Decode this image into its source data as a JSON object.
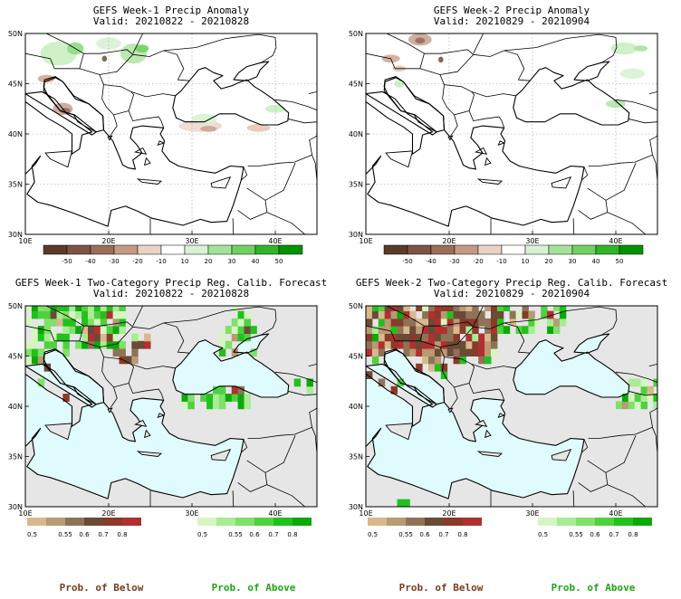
{
  "panels": [
    {
      "title": "GEFS Week-1 Precip Anomaly",
      "valid": "Valid: 20210822 - 20210828"
    },
    {
      "title": "GEFS Week-2 Precip Anomaly",
      "valid": "Valid: 20210829 - 20210904"
    },
    {
      "title": "GEFS Week-1 Two-Category Precip Reg. Calib. Forecast",
      "valid": "Valid: 20210822 - 20210828"
    },
    {
      "title": "GEFS Week-2 Two-Category Precip Reg. Calib. Forecast",
      "valid": "Valid: 20210829 - 20210904"
    }
  ],
  "axes": {
    "lat_labels": [
      "50N",
      "45N",
      "40N",
      "35N",
      "30N"
    ],
    "lon_labels": [
      "10E",
      "20E",
      "30E",
      "40E"
    ]
  },
  "anomaly_colorbar": {
    "labels": [
      "-50",
      "-40",
      "-30",
      "-20",
      "-10",
      "10",
      "20",
      "30",
      "40",
      "50"
    ],
    "colors": [
      "#5c3a2b",
      "#7d5444",
      "#9a6d5d",
      "#c49a87",
      "#e9d3c6",
      "#ffffff",
      "#d9f2d3",
      "#a4e39a",
      "#6fd163",
      "#30b52a",
      "#009400"
    ]
  },
  "prob_colorbar": {
    "labels": [
      "0.5",
      "0.55",
      "0.6",
      "0.7",
      "0.8"
    ],
    "below_colors": [
      "#d9b88e",
      "#b89a73",
      "#8f7358",
      "#6b4a36",
      "#8a3a2a",
      "#b03030"
    ],
    "above_colors": [
      "#d6f5c2",
      "#a8ec94",
      "#7fe06a",
      "#4fd13f",
      "#22c01d",
      "#0ca80a"
    ]
  },
  "legend": {
    "below_label": "Prob. of Below",
    "above_label": "Prob. of Above",
    "below_color": "#7a3b1e",
    "above_color": "#1fa514"
  },
  "colors": {
    "sea_prob": "#e0fbfd",
    "land_prob": "#e6e6e6",
    "border": "#000000"
  }
}
